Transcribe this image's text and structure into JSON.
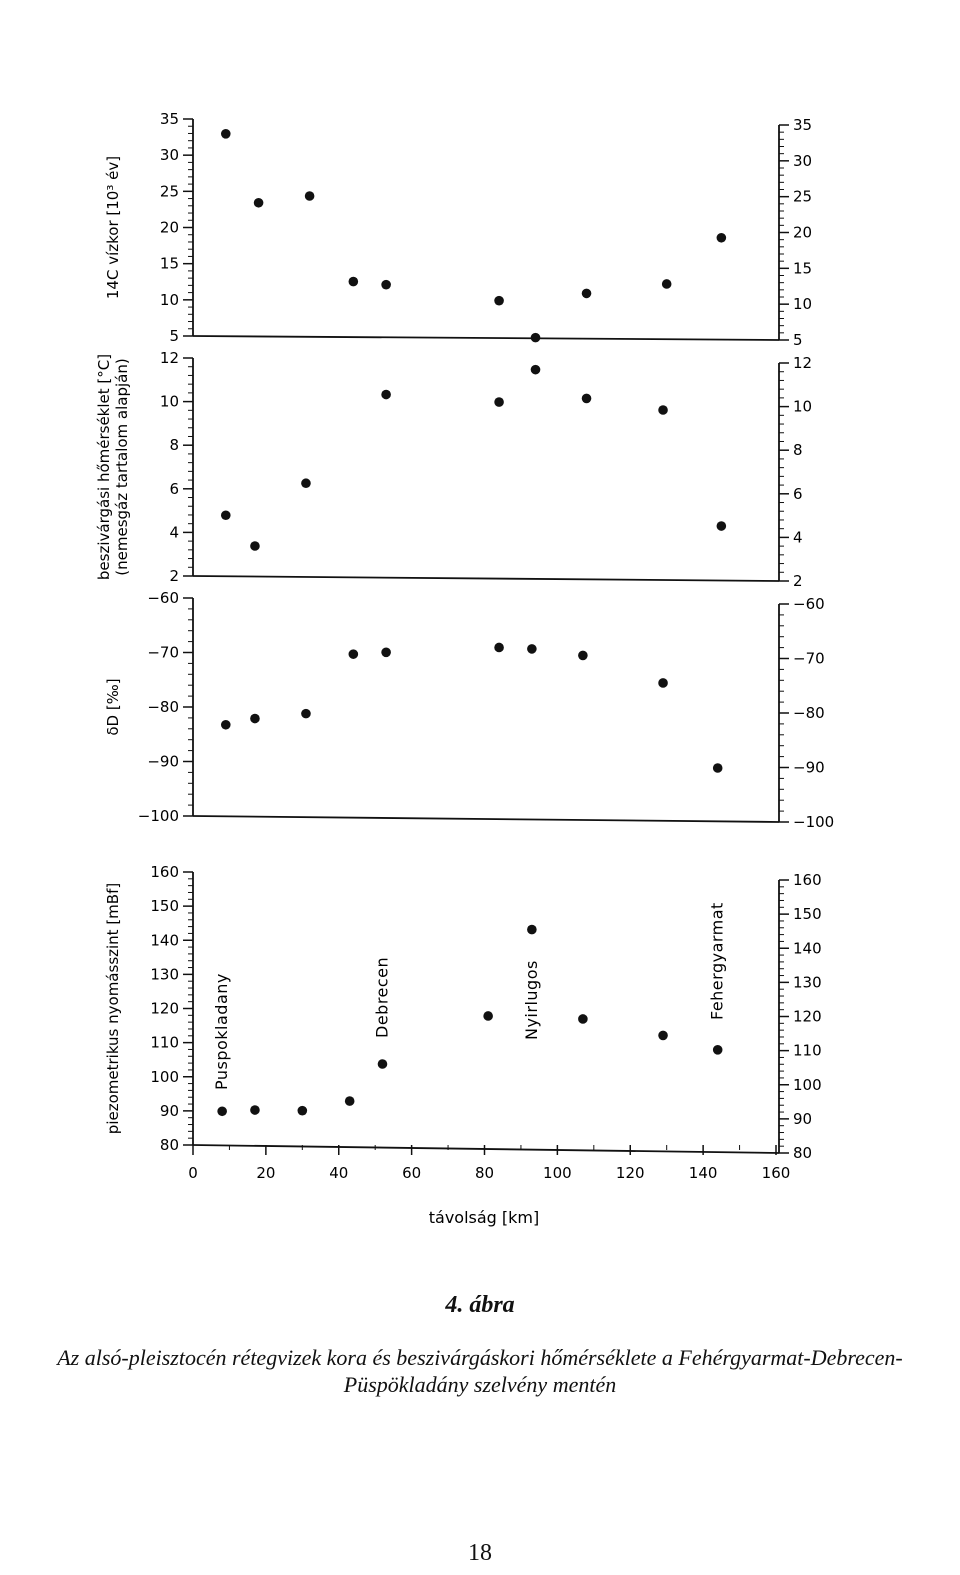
{
  "chart_data": [
    {
      "type": "scatter",
      "ylabel": "14C vízkor [10³ év]",
      "ylim": [
        5,
        35
      ],
      "yticks": [
        5,
        10,
        15,
        20,
        25,
        30,
        35
      ],
      "series": [
        {
          "x": [
            9,
            18,
            32,
            44,
            53,
            84,
            94,
            108,
            130,
            145
          ],
          "y": [
            33,
            23.5,
            24.5,
            12.7,
            12.3,
            10.2,
            5.1,
            11.3,
            12.7,
            19.2
          ]
        }
      ]
    },
    {
      "type": "scatter",
      "ylabel": "beszivárgási hőmérséklet [°C] (nemesgáz tartalom alapján)",
      "ylim": [
        2,
        12
      ],
      "yticks": [
        2,
        4,
        6,
        8,
        10,
        12
      ],
      "series": [
        {
          "x": [
            9,
            17,
            31,
            53,
            84,
            94,
            108,
            129,
            145
          ],
          "y": [
            4.8,
            3.4,
            6.3,
            10.4,
            10.1,
            11.6,
            10.3,
            9.8,
            4.5
          ]
        }
      ]
    },
    {
      "type": "scatter",
      "ylabel": "δD [‰]",
      "ylim": [
        -100,
        -60
      ],
      "yticks": [
        -100,
        -90,
        -80,
        -70,
        -60
      ],
      "series": [
        {
          "x": [
            9,
            17,
            31,
            44,
            53,
            84,
            93,
            107,
            129,
            144
          ],
          "y": [
            -83.2,
            -82,
            -81,
            -70,
            -69.6,
            -68.5,
            -68.7,
            -69.8,
            -74.7,
            -90.2
          ]
        }
      ]
    },
    {
      "type": "scatter",
      "ylabel": "piezometrikus nyomásszint [mBf]",
      "xlabel": "távolság [km]",
      "xlim": [
        0,
        160
      ],
      "xticks": [
        0,
        20,
        40,
        60,
        80,
        100,
        120,
        140,
        160
      ],
      "ylim": [
        80,
        160
      ],
      "yticks": [
        80,
        90,
        100,
        110,
        120,
        130,
        140,
        150,
        160
      ],
      "series": [
        {
          "x": [
            8,
            17,
            30,
            43,
            52,
            81,
            93,
            107,
            129,
            144
          ],
          "y": [
            90,
            90.5,
            90.5,
            93.5,
            104.5,
            119,
            144.5,
            118.5,
            114,
            110
          ]
        }
      ],
      "annotations": [
        {
          "text": "Puspokladany",
          "x": 8
        },
        {
          "text": "Debrecen",
          "x": 52
        },
        {
          "text": "Nyirlugos",
          "x": 93
        },
        {
          "text": "Fehergyarmat",
          "x": 144
        }
      ]
    }
  ],
  "caption": {
    "title": "4. ábra",
    "text": "Az alsó-pleisztocén rétegvizek kora és beszivárgáskori hőmérséklete a Fehérgyarmat-Debrecen-Püspökladány szelvény mentén"
  },
  "page_number": "18"
}
